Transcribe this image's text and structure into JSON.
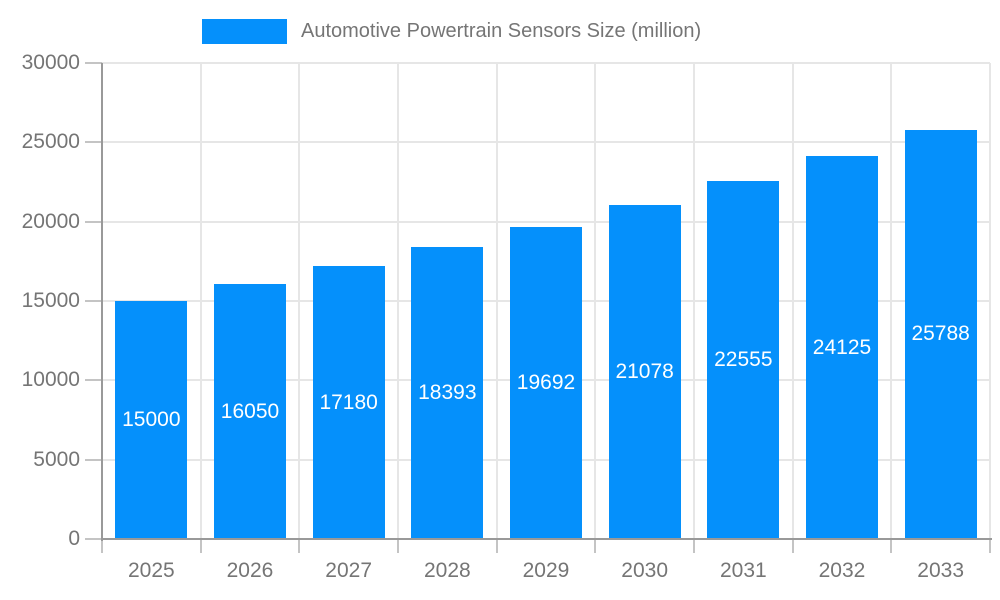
{
  "chart_data": {
    "type": "bar",
    "title": "Automotive Powertrain Sensors Size (million)",
    "categories": [
      "2025",
      "2026",
      "2027",
      "2028",
      "2029",
      "2030",
      "2031",
      "2032",
      "2033"
    ],
    "values": [
      15000,
      16050,
      17180,
      18393,
      19692,
      21078,
      22555,
      24125,
      25788
    ],
    "xlabel": "",
    "ylabel": "",
    "ylim": [
      0,
      30000
    ],
    "yticks": [
      0,
      5000,
      10000,
      15000,
      20000,
      25000,
      30000
    ],
    "grid": true,
    "legend_position": "top",
    "bar_color": "#0590fb",
    "value_label_color": "#ffffff",
    "grid_color": "#e6e6e6",
    "axis_color": "#999999",
    "tick_color": "#c4c4c4",
    "text_color": "#757575"
  }
}
